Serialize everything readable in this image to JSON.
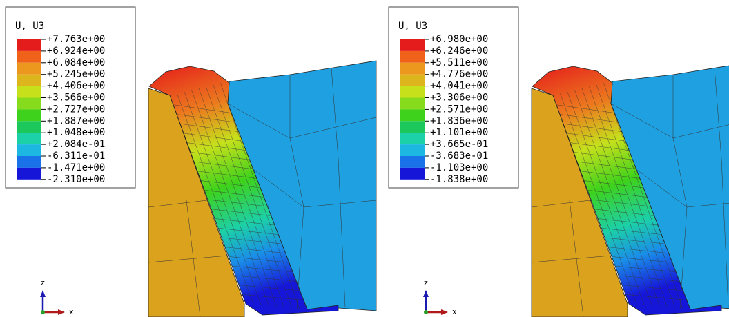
{
  "panels": [
    {
      "legend": {
        "title": "U, U3",
        "labels": [
          "+7.763e+00",
          "+6.924e+00",
          "+6.084e+00",
          "+5.245e+00",
          "+4.406e+00",
          "+3.566e+00",
          "+2.727e+00",
          "+1.887e+00",
          "+1.048e+00",
          "+2.084e-01",
          "-6.311e-01",
          "-1.471e+00",
          "-2.310e+00"
        ],
        "colors": [
          "#e51c1c",
          "#f0621a",
          "#ec981e",
          "#dcb61c",
          "#c6e01c",
          "#86dc1c",
          "#3ed21c",
          "#1cc85c",
          "#1cd0a8",
          "#1cb8e2",
          "#1a72e8",
          "#1616d8"
        ]
      },
      "triad": {
        "z": "z",
        "x": "x"
      }
    },
    {
      "legend": {
        "title": "U, U3",
        "labels": [
          "+6.980e+00",
          "+6.246e+00",
          "+5.511e+00",
          "+4.776e+00",
          "+4.041e+00",
          "+3.306e+00",
          "+2.571e+00",
          "+1.836e+00",
          "+1.101e+00",
          "+3.665e-01",
          "-3.683e-01",
          "-1.103e+00",
          "-1.838e+00"
        ],
        "colors": [
          "#e51c1c",
          "#f0621a",
          "#ec981e",
          "#dcb61c",
          "#c6e01c",
          "#86dc1c",
          "#3ed21c",
          "#1cc85c",
          "#1cd0a8",
          "#1cb8e2",
          "#1a72e8",
          "#1616d8"
        ]
      },
      "triad": {
        "z": "z",
        "x": "x"
      }
    }
  ]
}
